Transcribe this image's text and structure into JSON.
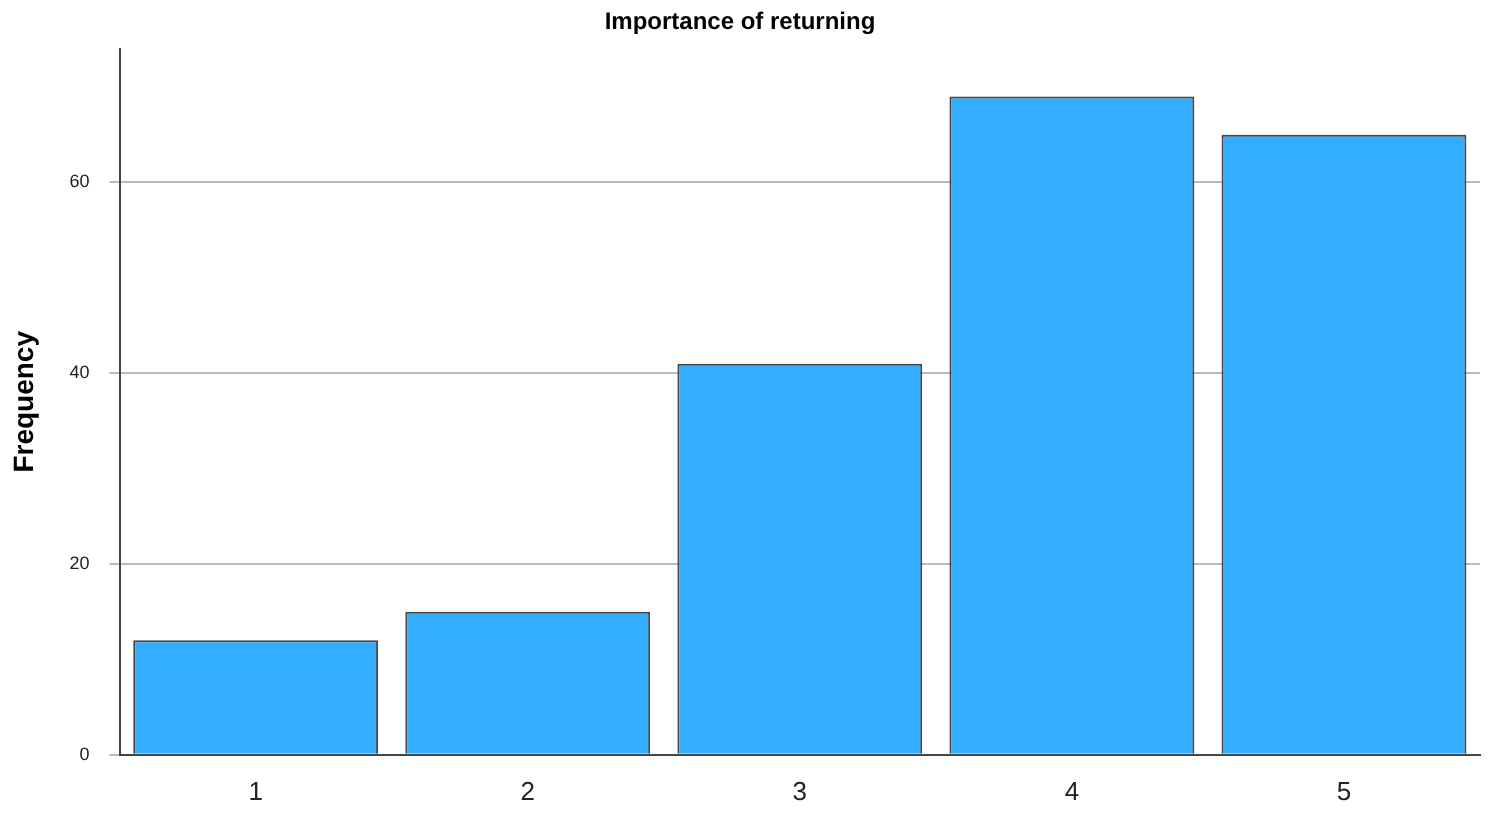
{
  "chart_data": {
    "type": "bar",
    "title": "Importance of returning",
    "ylabel": "Frequency",
    "categories": [
      "1",
      "2",
      "3",
      "4",
      "5"
    ],
    "values": [
      12,
      15,
      41,
      69,
      65
    ],
    "color": "#33adff",
    "ylim": [
      0,
      74
    ],
    "yticks": [
      0,
      20,
      40,
      60
    ],
    "grid": "y",
    "legend": false
  }
}
